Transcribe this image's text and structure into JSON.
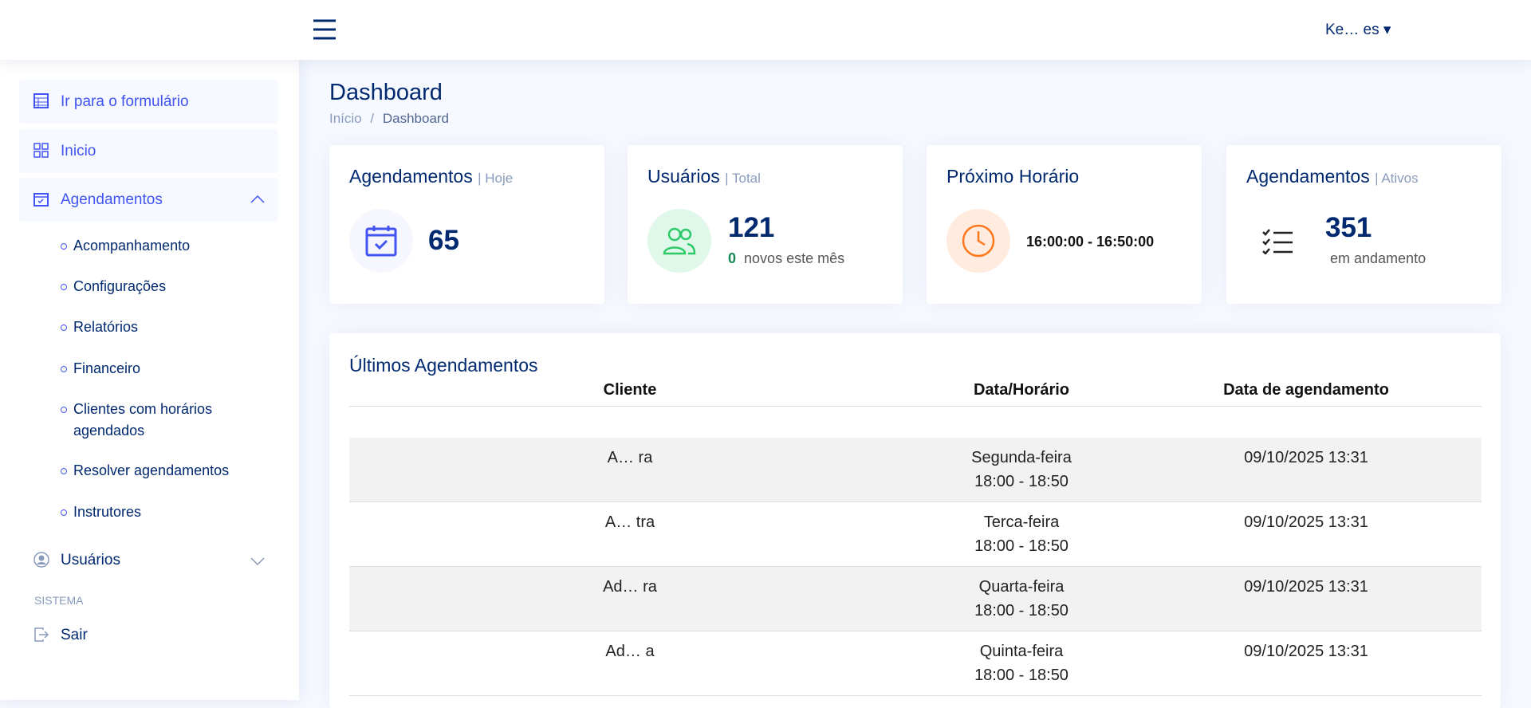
{
  "header": {
    "user": "Ke… es"
  },
  "sidebar": {
    "items": [
      "Ir para o formulário",
      "Inicio",
      "Agendamentos"
    ],
    "submenu": [
      "Acompanhamento",
      "Configurações",
      "Relatórios",
      "Financeiro",
      "Clientes com horários agendados",
      "Resolver agendamentos",
      "Instrutores"
    ],
    "users": "Usuários",
    "section": "SISTEMA",
    "logout": "Sair"
  },
  "page": {
    "title": "Dashboard",
    "breadcrumb": [
      "Início",
      "/",
      "Dashboard"
    ]
  },
  "cards": [
    {
      "title": "Agendamentos",
      "subtitle": "| Hoje",
      "value": 65
    },
    {
      "title": "Usuários",
      "subtitle": "| Total",
      "value": 121,
      "new": 0,
      "note": "novos este mês"
    },
    {
      "title": "Próximo Horário",
      "value": "16:00:00 - 16:50:00"
    },
    {
      "title": "Agendamentos",
      "subtitle": "| Ativos",
      "value": 351,
      "note": "em andamento"
    }
  ],
  "table": {
    "title": "Últimos Agendamentos",
    "columns": [
      "Cliente",
      "Data/Horário",
      "Data de agendamento"
    ],
    "rows": [
      {
        "client": "A… ra",
        "day": "Segunda-feira",
        "time": "18:00 - 18:50",
        "created": "09/10/2025 13:31"
      },
      {
        "client": "A… tra",
        "day": "Terca-feira",
        "time": "18:00 - 18:50",
        "created": "09/10/2025 13:31"
      },
      {
        "client": "Ad… ra",
        "day": "Quarta-feira",
        "time": "18:00 - 18:50",
        "created": "09/10/2025 13:31"
      },
      {
        "client": "Ad… a",
        "day": "Quinta-feira",
        "time": "18:00 - 18:50",
        "created": "09/10/2025 13:31"
      }
    ]
  }
}
